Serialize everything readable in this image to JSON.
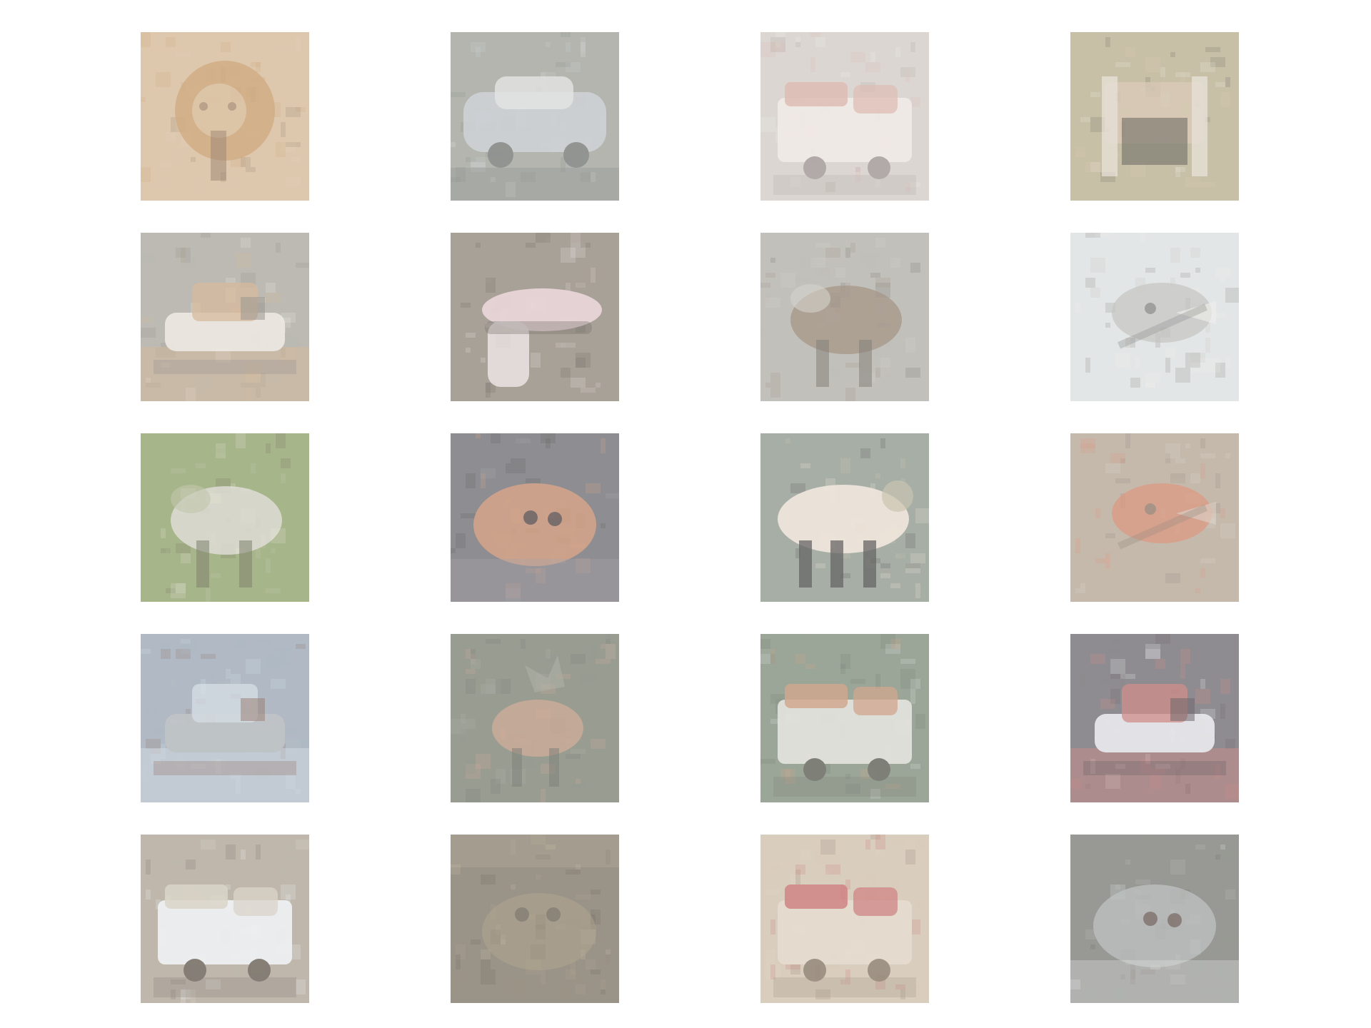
{
  "gallery": {
    "rows": 5,
    "columns": 4,
    "tiles": [
      {
        "subject": "lion",
        "palette": {
          "bg": "#d9c1a3",
          "main": "#c9a071",
          "accent": "#8f7560",
          "detail": "#e3cfb7"
        }
      },
      {
        "subject": "car",
        "palette": {
          "bg": "#a9aba3",
          "main": "#c7ccd0",
          "accent": "#7f8380",
          "detail": "#e6e7e6"
        }
      },
      {
        "subject": "truck",
        "palette": {
          "bg": "#d7d1cc",
          "main": "#efe8e5",
          "accent": "#a39b98",
          "detail": "#d9b3a8"
        }
      },
      {
        "subject": "furniture",
        "palette": {
          "bg": "#c1b89a",
          "main": "#d4c3ad",
          "accent": "#5e5a55",
          "detail": "#e8e2da"
        }
      },
      {
        "subject": "boat",
        "palette": {
          "bg": "#b3b1a8",
          "main": "#ebe6df",
          "accent": "#8a857d",
          "detail": "#d6b28f"
        }
      },
      {
        "subject": "shoe",
        "palette": {
          "bg": "#9c9489",
          "main": "#e8d1d5",
          "accent": "#5f5954",
          "detail": "#f0e6e8"
        }
      },
      {
        "subject": "horse",
        "palette": {
          "bg": "#b9b8b1",
          "main": "#9b8a7a",
          "accent": "#6f6a62",
          "detail": "#d0cfc7"
        }
      },
      {
        "subject": "bird",
        "palette": {
          "bg": "#dfe3e3",
          "main": "#bdbdb9",
          "accent": "#7a7a78",
          "detail": "#f0eeea"
        }
      },
      {
        "subject": "horse",
        "palette": {
          "bg": "#9bab7a",
          "main": "#e1ddd7",
          "accent": "#6a6c58",
          "detail": "#bcc2a6"
        }
      },
      {
        "subject": "dog",
        "palette": {
          "bg": "#7f7e82",
          "main": "#d89b79",
          "accent": "#4d4a4d",
          "detail": "#9e9aa2"
        }
      },
      {
        "subject": "sheep",
        "palette": {
          "bg": "#9aa39a",
          "main": "#efe3d8",
          "accent": "#4c4b4b",
          "detail": "#c8c0a8"
        }
      },
      {
        "subject": "bird",
        "palette": {
          "bg": "#bdb0a0",
          "main": "#d98a6f",
          "accent": "#8a7c70",
          "detail": "#d8d0c4"
        }
      },
      {
        "subject": "ship",
        "palette": {
          "bg": "#a5b0bc",
          "main": "#b8bcc0",
          "accent": "#8d6b5f",
          "detail": "#d6dde6"
        }
      },
      {
        "subject": "deer",
        "palette": {
          "bg": "#8a8f82",
          "main": "#d2a48c",
          "accent": "#6e6f68",
          "detail": "#a7aa9e"
        }
      },
      {
        "subject": "truck",
        "palette": {
          "bg": "#8e9a8a",
          "main": "#e1e0da",
          "accent": "#6b6c64",
          "detail": "#cf9b7f"
        }
      },
      {
        "subject": "ship",
        "palette": {
          "bg": "#7f7d81",
          "main": "#e7e8ec",
          "accent": "#5b4e56",
          "detail": "#d07f7a"
        }
      },
      {
        "subject": "truck",
        "palette": {
          "bg": "#b7aea0",
          "main": "#eef0f2",
          "accent": "#70685e",
          "detail": "#d8d2c6"
        }
      },
      {
        "subject": "frog",
        "palette": {
          "bg": "#8c8577",
          "main": "#a89a84",
          "accent": "#5e5850",
          "detail": "#c3b7a1"
        }
      },
      {
        "subject": "truck",
        "palette": {
          "bg": "#d4c6b4",
          "main": "#e3d8ca",
          "accent": "#8c7f70",
          "detail": "#c86d6f"
        }
      },
      {
        "subject": "dog",
        "palette": {
          "bg": "#8a8b86",
          "main": "#b4b8b7",
          "accent": "#6b5a55",
          "detail": "#e4e6e8"
        }
      }
    ]
  }
}
